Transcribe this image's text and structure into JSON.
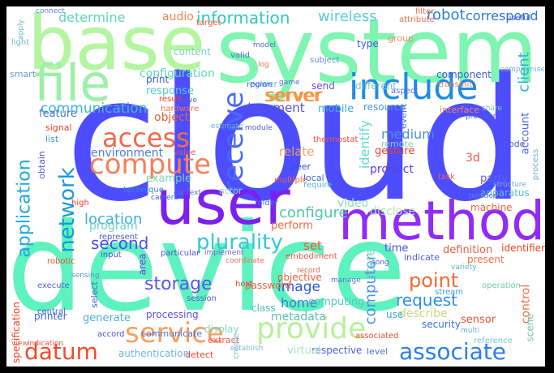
{
  "words": [
    {
      "text": "cloud",
      "color": "#4d4dff"
    },
    {
      "text": "device",
      "color": "#5ef2be"
    },
    {
      "text": "system",
      "color": "#7ef5b0"
    },
    {
      "text": "base",
      "color": "#b4f5a0"
    },
    {
      "text": "user",
      "color": "#7a20f0"
    },
    {
      "text": "method",
      "color": "#8f2cf5"
    },
    {
      "text": "include",
      "color": "#1e8be8"
    },
    {
      "text": "file",
      "color": "#9ef0a8"
    },
    {
      "text": "compute",
      "color": "#f5805a"
    },
    {
      "text": "access",
      "color": "#ef6a4a"
    },
    {
      "text": "service",
      "color": "#f6a060"
    },
    {
      "text": "provide",
      "color": "#b8f09c"
    },
    {
      "text": "associate",
      "color": "#2a80e8"
    },
    {
      "text": "datum",
      "color": "#f24a2a"
    },
    {
      "text": "receive",
      "color": "#4a6af5"
    },
    {
      "text": "application",
      "color": "#1fa8e0"
    },
    {
      "text": "network",
      "color": "#1a98dc"
    },
    {
      "text": "plurality",
      "color": "#36c8d8"
    },
    {
      "text": "second",
      "color": "#4a4ef2"
    },
    {
      "text": "storage",
      "color": "#5858f0"
    },
    {
      "text": "information",
      "color": "#30c6c8"
    },
    {
      "text": "determine",
      "color": "#5ed6b8"
    },
    {
      "text": "server",
      "color": "#ff9040"
    },
    {
      "text": "point",
      "color": "#f66a30"
    },
    {
      "text": "request",
      "color": "#2a90e6"
    },
    {
      "text": "computer",
      "color": "#4a90e8"
    },
    {
      "text": "identify",
      "color": "#60d8d0"
    },
    {
      "text": "configure",
      "color": "#52c8a8"
    },
    {
      "text": "location",
      "color": "#3cb0d8"
    },
    {
      "text": "communication",
      "color": "#40b8c8"
    },
    {
      "text": "document",
      "color": "#5050d8"
    },
    {
      "text": "image",
      "color": "#2a5ad8"
    },
    {
      "text": "home",
      "color": "#3a7ad8"
    },
    {
      "text": "metadata",
      "color": "#60c0a8"
    },
    {
      "text": "computing",
      "color": "#54c8c0"
    },
    {
      "text": "wireless",
      "color": "#58d0d8"
    },
    {
      "text": "robot",
      "color": "#2a80d8"
    },
    {
      "text": "correspond",
      "color": "#2a7ad0"
    },
    {
      "text": "client",
      "color": "#28b0e0"
    },
    {
      "text": "audio",
      "color": "#f08848"
    },
    {
      "text": "configuration",
      "color": "#60d8b8"
    },
    {
      "text": "environment",
      "color": "#4a7ad8"
    },
    {
      "text": "object",
      "color": "#e86040"
    },
    {
      "text": "program",
      "color": "#6ad6c8"
    },
    {
      "text": "example",
      "color": "#7ad0b0"
    },
    {
      "text": "response",
      "color": "#58c8d0"
    },
    {
      "text": "print",
      "color": "#3a5ad8"
    },
    {
      "text": "content",
      "color": "#7ed0b8"
    },
    {
      "text": "set",
      "color": "#f05a30"
    },
    {
      "text": "perform",
      "color": "#f66a40"
    },
    {
      "text": "video",
      "color": "#90e0b0"
    },
    {
      "text": "disclose",
      "color": "#a8e8b8"
    },
    {
      "text": "store",
      "color": "#78d8d0"
    },
    {
      "text": "medium",
      "color": "#4a90d8"
    },
    {
      "text": "relate",
      "color": "#f0a060"
    },
    {
      "text": "feature",
      "color": "#4a78d0"
    },
    {
      "text": "signal",
      "color": "#f04020"
    },
    {
      "text": "list",
      "color": "#3aa8d8"
    },
    {
      "text": "mobile",
      "color": "#3ab0d0"
    },
    {
      "text": "resource",
      "color": "#4898d8"
    },
    {
      "text": "gesture",
      "color": "#f04030"
    },
    {
      "text": "product",
      "color": "#5a40e0"
    },
    {
      "text": "party",
      "color": "#6060d8"
    },
    {
      "text": "3d",
      "color": "#f05a40"
    },
    {
      "text": "apparatus",
      "color": "#58c0c8"
    },
    {
      "text": "remote",
      "color": "#80d0b8"
    },
    {
      "text": "node",
      "color": "#5060d0"
    },
    {
      "text": "account",
      "color": "#5068e0"
    },
    {
      "text": "machine",
      "color": "#f06040"
    },
    {
      "text": "time",
      "color": "#4a50e0"
    },
    {
      "text": "definition",
      "color": "#f06040"
    },
    {
      "text": "identifier",
      "color": "#f04020"
    },
    {
      "text": "present",
      "color": "#f87050"
    },
    {
      "text": "control",
      "color": "#f07040"
    },
    {
      "text": "describe",
      "color": "#c8d880"
    },
    {
      "text": "sensor",
      "color": "#f05030"
    },
    {
      "text": "security",
      "color": "#3a70d8"
    },
    {
      "text": "use",
      "color": "#30a8e0"
    },
    {
      "text": "associated",
      "color": "#f05030"
    },
    {
      "text": "respective",
      "color": "#5060d8"
    },
    {
      "text": "class",
      "color": "#50c0c8"
    },
    {
      "text": "virtual",
      "color": "#a8e8c0"
    },
    {
      "text": "display",
      "color": "#80d8c8"
    },
    {
      "text": "processing",
      "color": "#6050e0"
    },
    {
      "text": "generate",
      "color": "#50b0d8"
    },
    {
      "text": "communicate",
      "color": "#5070d8"
    },
    {
      "text": "extract",
      "color": "#f06050"
    },
    {
      "text": "detect",
      "color": "#f04030"
    },
    {
      "text": "authentication",
      "color": "#70b8e0"
    },
    {
      "text": "printer",
      "color": "#3a60d8"
    },
    {
      "text": "accord",
      "color": "#5050d0"
    },
    {
      "text": "specification",
      "color": "#f04020"
    },
    {
      "text": "objective",
      "color": "#f06040"
    },
    {
      "text": "password",
      "color": "#f06040"
    },
    {
      "text": "session",
      "color": "#5060d0"
    },
    {
      "text": "execute",
      "color": "#5068d8"
    },
    {
      "text": "robotic",
      "color": "#f05030"
    },
    {
      "text": "thermostat",
      "color": "#f05030"
    },
    {
      "text": "peer",
      "color": "#3050d8"
    },
    {
      "text": "local",
      "color": "#3a70d8"
    },
    {
      "text": "multiple",
      "color": "#f06040"
    },
    {
      "text": "require",
      "color": "#50b8d0"
    },
    {
      "text": "host",
      "color": "#f04030"
    },
    {
      "text": "stream",
      "color": "#40a0d8"
    },
    {
      "text": "type",
      "color": "#4058d8"
    },
    {
      "text": "component",
      "color": "#3a60d8"
    },
    {
      "text": "server",
      "color": "#ff9040"
    },
    {
      "text": "different",
      "color": "#70c8c0"
    },
    {
      "text": "send",
      "color": "#6050e0"
    },
    {
      "text": "power",
      "color": "#60b8d0"
    },
    {
      "text": "hardware",
      "color": "#f07050"
    },
    {
      "text": "technique",
      "color": "#3a80d8"
    },
    {
      "text": "actor",
      "color": "#90d8c0"
    },
    {
      "text": "folder",
      "color": "#3a80d8"
    },
    {
      "text": "camera",
      "color": "#3a70d8"
    },
    {
      "text": "event",
      "color": "#4070d8"
    },
    {
      "text": "interface",
      "color": "#f08060"
    },
    {
      "text": "target",
      "color": "#f06040"
    },
    {
      "text": "smart",
      "color": "#60a0d8"
    },
    {
      "text": "connect",
      "color": "#6080d8"
    },
    {
      "text": "filter",
      "color": "#f07050"
    },
    {
      "text": "group",
      "color": "#f09060"
    },
    {
      "text": "valid",
      "color": "#6070d0"
    },
    {
      "text": "subject",
      "color": "#6090d8"
    },
    {
      "text": "transmit",
      "color": "#f08060"
    },
    {
      "text": "task",
      "color": "#f06050"
    },
    {
      "text": "variety",
      "color": "#60b0d0"
    },
    {
      "text": "operation",
      "color": "#70c8b0"
    },
    {
      "text": "reference",
      "color": "#70c8d0"
    },
    {
      "text": "central",
      "color": "#5060d0"
    },
    {
      "text": "indication",
      "color": "#f05040"
    },
    {
      "text": "scene",
      "color": "#70c8b0"
    },
    {
      "text": "level",
      "color": "#5070d0"
    },
    {
      "text": "select",
      "color": "#4060d8"
    },
    {
      "text": "area",
      "color": "#7040e0"
    },
    {
      "text": "implement",
      "color": "#8060d8"
    },
    {
      "text": "embodiment",
      "color": "#f05040"
    },
    {
      "text": "record",
      "color": "#f06040"
    },
    {
      "text": "input",
      "color": "#4058d8"
    },
    {
      "text": "represent",
      "color": "#5060d0"
    },
    {
      "text": "particular",
      "color": "#5050d0"
    },
    {
      "text": "coordinate",
      "color": "#f07060"
    },
    {
      "text": "region",
      "color": "#5060d8"
    },
    {
      "text": "manage",
      "color": "#6070d8"
    },
    {
      "text": "song",
      "color": "#5060d8"
    },
    {
      "text": "indicate",
      "color": "#5060d8"
    },
    {
      "text": "position",
      "color": "#6070d8"
    },
    {
      "text": "structure",
      "color": "#70b0d0"
    },
    {
      "text": "process",
      "color": "#70b0d0"
    },
    {
      "text": "share",
      "color": "#80c8b8"
    },
    {
      "text": "provider",
      "color": "#5060d0"
    },
    {
      "text": "useful",
      "color": "#5060d0"
    },
    {
      "text": "compromise",
      "color": "#70b8d0"
    },
    {
      "text": "attribute",
      "color": "#f07050"
    },
    {
      "text": "result",
      "color": "#f04030"
    },
    {
      "text": "save",
      "color": "#5060d0"
    },
    {
      "text": "log",
      "color": "#f07050"
    },
    {
      "text": "model",
      "color": "#5070d0"
    },
    {
      "text": "game",
      "color": "#6070d0"
    },
    {
      "text": "sensing",
      "color": "#6090d0"
    },
    {
      "text": "obtain",
      "color": "#5060d0"
    },
    {
      "text": "high",
      "color": "#f04030"
    },
    {
      "text": "value",
      "color": "#f05040"
    },
    {
      "text": "context",
      "color": "#6070d0"
    },
    {
      "text": "establish",
      "color": "#80c0d0"
    },
    {
      "text": "create",
      "color": "#80c0d0"
    },
    {
      "text": "aspect",
      "color": "#6070d0"
    },
    {
      "text": "multi",
      "color": "#70b0d0"
    },
    {
      "text": "view",
      "color": "#f06050"
    },
    {
      "text": "estimate",
      "color": "#70b0d0"
    },
    {
      "text": "module",
      "color": "#5060d0"
    },
    {
      "text": "light",
      "color": "#70b8d0"
    },
    {
      "text": "apply",
      "color": "#70b8d0"
    }
  ]
}
